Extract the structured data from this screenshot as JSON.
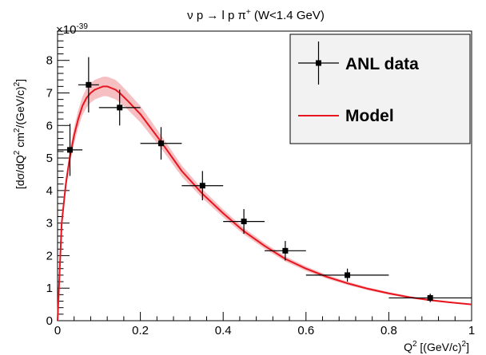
{
  "chart_data": {
    "type": "scatter",
    "title": "ν p → l p π",
    "title_sup": "+",
    "title_suffix": " (W<1.4 GeV)",
    "xlabel": "Q",
    "xlabel_sup": "2",
    "xlabel_suffix": " [(GeV/c)",
    "xlabel_sup2": "2",
    "xlabel_end": "]",
    "ylabel": "[dσ/dQ",
    "ylabel_sup": "2",
    "ylabel_mid": "   cm",
    "ylabel_sup2": "2",
    "ylabel_mid2": "/(GeV/c)",
    "ylabel_sup3": "2",
    "ylabel_end": "]",
    "y_multiplier": "×10",
    "y_multiplier_exp": "-39",
    "xlim": [
      0,
      1
    ],
    "ylim": [
      0,
      8.9
    ],
    "x_ticks": [
      0,
      0.2,
      0.4,
      0.6,
      0.8,
      1
    ],
    "x_tick_labels": [
      "0",
      "0.2",
      "0.4",
      "0.6",
      "0.8",
      "1"
    ],
    "y_ticks": [
      0,
      1,
      2,
      3,
      4,
      5,
      6,
      7,
      8
    ],
    "y_tick_labels": [
      "0",
      "1",
      "2",
      "3",
      "4",
      "5",
      "6",
      "7",
      "8"
    ],
    "grid": false,
    "legend_position": "top-right",
    "legend": [
      {
        "label": "ANL data",
        "style": "marker-errorbar"
      },
      {
        "label": "Model",
        "style": "line"
      }
    ],
    "series": [
      {
        "name": "ANL data",
        "color": "#000000",
        "points": [
          {
            "x": 0.03,
            "y": 5.25,
            "xerr": 0.03,
            "yerr": 0.8
          },
          {
            "x": 0.075,
            "y": 7.25,
            "xerr": 0.025,
            "yerr": 0.85
          },
          {
            "x": 0.15,
            "y": 6.55,
            "xerr": 0.05,
            "yerr": 0.55
          },
          {
            "x": 0.25,
            "y": 5.45,
            "xerr": 0.05,
            "yerr": 0.5
          },
          {
            "x": 0.35,
            "y": 4.15,
            "xerr": 0.05,
            "yerr": 0.45
          },
          {
            "x": 0.45,
            "y": 3.05,
            "xerr": 0.05,
            "yerr": 0.38
          },
          {
            "x": 0.55,
            "y": 2.15,
            "xerr": 0.05,
            "yerr": 0.3
          },
          {
            "x": 0.7,
            "y": 1.4,
            "xerr": 0.1,
            "yerr": 0.2
          },
          {
            "x": 0.9,
            "y": 0.7,
            "xerr": 0.1,
            "yerr": 0.13
          }
        ]
      },
      {
        "name": "Model",
        "color": "#e8141e",
        "band_color": "#f5b5b8",
        "x": [
          0,
          0.01,
          0.02,
          0.03,
          0.04,
          0.05,
          0.06,
          0.07,
          0.08,
          0.09,
          0.1,
          0.11,
          0.12,
          0.13,
          0.14,
          0.15,
          0.17,
          0.2,
          0.25,
          0.3,
          0.35,
          0.4,
          0.45,
          0.5,
          0.55,
          0.6,
          0.65,
          0.7,
          0.75,
          0.8,
          0.85,
          0.9,
          0.95,
          1.0
        ],
        "y": [
          0,
          3.0,
          4.2,
          5.05,
          5.7,
          6.2,
          6.6,
          6.85,
          7.0,
          7.1,
          7.15,
          7.2,
          7.2,
          7.15,
          7.1,
          7.0,
          6.75,
          6.35,
          5.5,
          4.6,
          3.9,
          3.3,
          2.75,
          2.3,
          1.9,
          1.6,
          1.35,
          1.15,
          0.98,
          0.84,
          0.72,
          0.63,
          0.56,
          0.5
        ],
        "band": [
          0,
          0.15,
          0.2,
          0.22,
          0.25,
          0.27,
          0.28,
          0.3,
          0.3,
          0.3,
          0.3,
          0.3,
          0.3,
          0.3,
          0.3,
          0.29,
          0.27,
          0.25,
          0.2,
          0.17,
          0.14,
          0.12,
          0.1,
          0.09,
          0.08,
          0.07,
          0.06,
          0.05,
          0.045,
          0.04,
          0.035,
          0.03,
          0.025,
          0.02
        ]
      }
    ]
  }
}
